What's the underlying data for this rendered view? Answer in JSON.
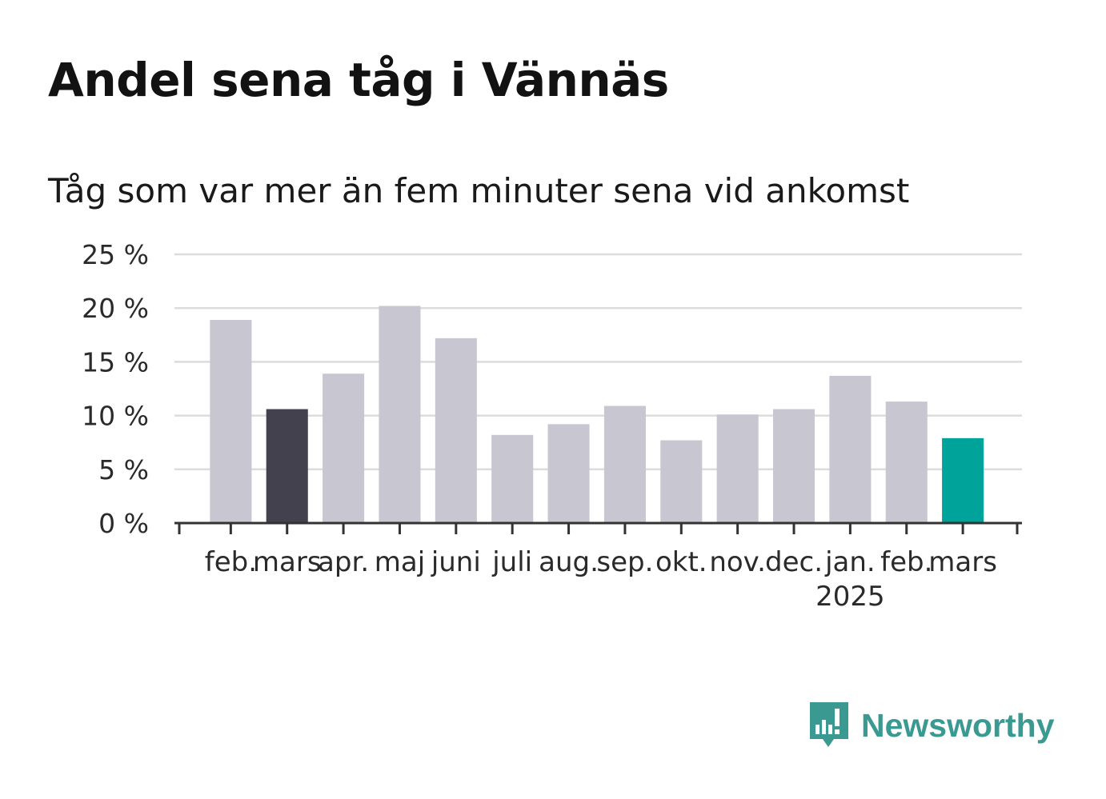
{
  "title": "Andel sena tåg i Vännäs",
  "subtitle": "Tåg som var mer än fem minuter sena vid ankomst",
  "brand": {
    "name": "Newsworthy",
    "icon": "newsworthy-logo-icon",
    "color": "#3a9a92"
  },
  "chart_data": {
    "type": "bar",
    "title": "Andel sena tåg i Vännäs",
    "subtitle": "Tåg som var mer än fem minuter sena vid ankomst",
    "categories": [
      "feb.",
      "mars",
      "apr.",
      "maj",
      "juni",
      "juli",
      "aug.",
      "sep.",
      "okt.",
      "nov.",
      "dec.",
      "jan.",
      "feb.",
      "mars"
    ],
    "year_labels": [
      "",
      "",
      "",
      "",
      "",
      "",
      "",
      "",
      "",
      "",
      "",
      "2025",
      "",
      ""
    ],
    "values": [
      18.9,
      10.6,
      13.9,
      20.2,
      17.2,
      8.2,
      9.2,
      10.9,
      7.7,
      10.1,
      10.6,
      13.7,
      11.3,
      7.9
    ],
    "highlight": {
      "1": "#42414d",
      "13": "#00a39a"
    },
    "default_color": "#c8c7d1",
    "ylim": [
      0,
      25
    ],
    "yticks": [
      0,
      5,
      10,
      15,
      20,
      25
    ],
    "ytick_labels": [
      "0 %",
      "5 %",
      "10 %",
      "15 %",
      "20 %",
      "25 %"
    ],
    "grid": true,
    "xlabel": "",
    "ylabel": ""
  }
}
